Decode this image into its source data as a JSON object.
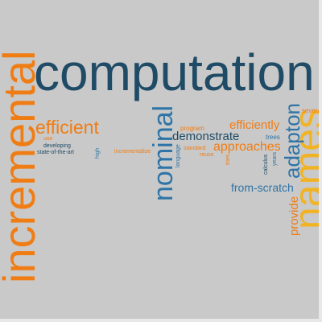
{
  "palette": {
    "dark_blue": "#1f4b66",
    "blue": "#2e74a6",
    "orange": "#f07d14",
    "yellow": "#f2b323",
    "background": "#c9c9c9"
  },
  "words": {
    "computation": "computation",
    "incremental": "incremental",
    "names": "names",
    "adapton": "adapton",
    "nominal": "nominal",
    "efficient": "efficient",
    "efficiently": "efficiently",
    "approaches": "approaches",
    "demonstrate": "demonstrate",
    "from_scratch": "from-scratch",
    "provide": "provide",
    "several": "several",
    "program": "program",
    "trees": "trees",
    "use": "use",
    "developing": "developing",
    "state_of_the_art": "state-of-the-art",
    "high": "high",
    "incrementalize": "incrementalize",
    "language": "language",
    "standard": "standard",
    "reuse": "reuse",
    "tries": "tries",
    "calculus": "calculus",
    "years": "years"
  }
}
